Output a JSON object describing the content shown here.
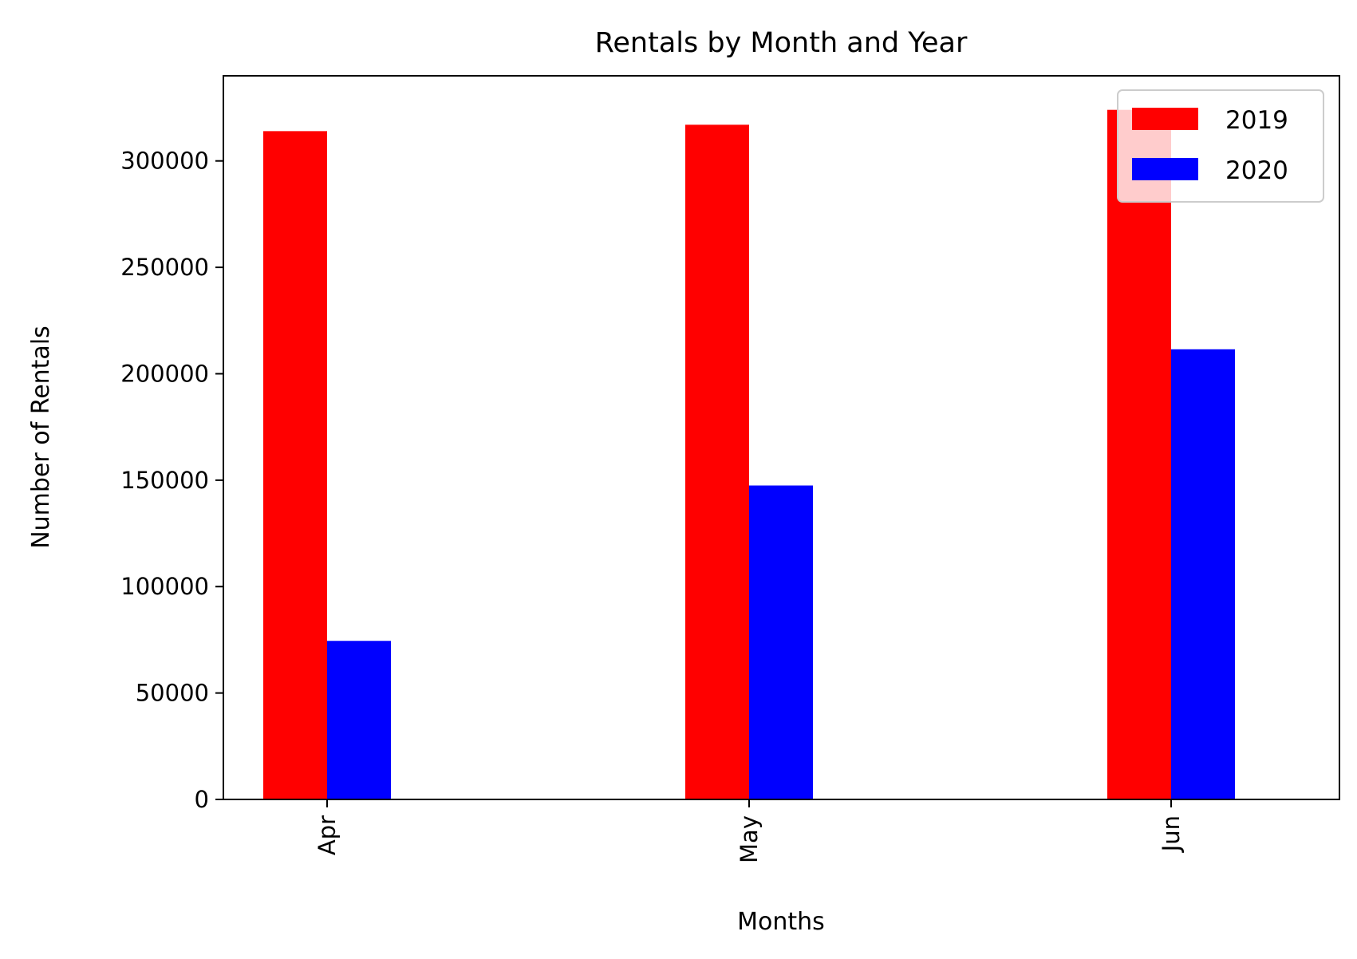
{
  "chart_data": {
    "type": "bar",
    "title": "Rentals by Month and Year",
    "xlabel": "Months",
    "ylabel": "Number of Rentals",
    "categories": [
      "Apr",
      "May",
      "Jun"
    ],
    "series": [
      {
        "name": "2019",
        "color": "#ff0000",
        "values": [
          314000,
          317000,
          324000
        ]
      },
      {
        "name": "2020",
        "color": "#0000ff",
        "values": [
          74500,
          147500,
          211500
        ]
      }
    ],
    "ylim": [
      0,
      340000
    ],
    "yticks": [
      0,
      50000,
      100000,
      150000,
      200000,
      250000,
      300000
    ],
    "ytick_labels": [
      "0",
      "50000",
      "100000",
      "150000",
      "200000",
      "250000",
      "300000"
    ],
    "grid": false,
    "legend_position": "top-right"
  }
}
